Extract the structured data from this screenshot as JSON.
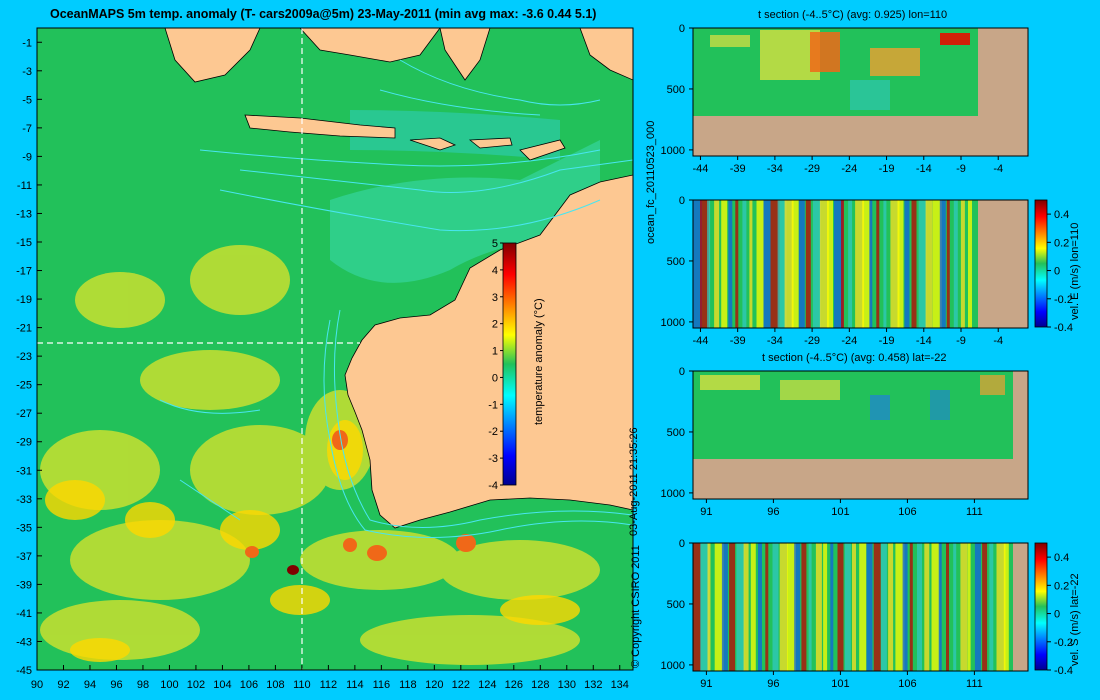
{
  "map": {
    "title": "OceanMAPS 5m temp. anomaly  (T- cars2009a@5m) 23-May-2011  (min avg max: -3.6 0.44 5.1)",
    "y_ticks": [
      "-1",
      "-3",
      "-5",
      "-7",
      "-9",
      "-11",
      "-13",
      "-15",
      "-17",
      "-19",
      "-21",
      "-23",
      "-25",
      "-27",
      "-29",
      "-31",
      "-33",
      "-35",
      "-37",
      "-39",
      "-41",
      "-43",
      "-45"
    ],
    "x_ticks": [
      "90",
      "92",
      "94",
      "96",
      "98",
      "100",
      "102",
      "104",
      "106",
      "108",
      "110",
      "112",
      "114",
      "116",
      "118",
      "120",
      "122",
      "124",
      "126",
      "128",
      "130",
      "132",
      "134"
    ],
    "colorbar_ticks": [
      "5",
      "4",
      "3",
      "2",
      "1",
      "0",
      "-1",
      "-2",
      "-3",
      "-4"
    ],
    "colorbar_label": "temperature anomaly (°C)",
    "colors": {
      "land": "#fdc892",
      "ocean": "#22c15a",
      "contour": "#48e6f0",
      "crosshair": "#ffffff"
    }
  },
  "side_labels": {
    "run_id": "ocean_fc_20110523_000",
    "timestamp": "03-Aug-2011 21:35:26",
    "copyright": "© Copyright CSIRO 2011"
  },
  "chart_data": [
    {
      "type": "heatmap",
      "title": "OceanMAPS 5m temp. anomaly  (T- cars2009a@5m) 23-May-2011  (min avg max: -3.6 0.44 5.1)",
      "xlim": [
        90,
        135
      ],
      "ylim": [
        -45,
        0
      ],
      "x_ticks": [
        90,
        92,
        94,
        96,
        98,
        100,
        102,
        104,
        106,
        108,
        110,
        112,
        114,
        116,
        118,
        120,
        122,
        124,
        126,
        128,
        130,
        132,
        134
      ],
      "y_ticks": [
        -1,
        -3,
        -5,
        -7,
        -9,
        -11,
        -13,
        -15,
        -17,
        -19,
        -21,
        -23,
        -25,
        -27,
        -29,
        -31,
        -33,
        -35,
        -37,
        -39,
        -41,
        -43,
        -45
      ],
      "stats": {
        "min": -3.6,
        "avg": 0.44,
        "max": 5.1
      },
      "colorbar": {
        "label": "temperature anomaly (°C)",
        "range": [
          -4,
          5
        ]
      },
      "crosshair": {
        "lon": 110,
        "lat": -22
      }
    },
    {
      "type": "heatmap",
      "title": "t section (-4..5°C) (avg: 0.925) lon=110",
      "x_ticks": [
        -44,
        -39,
        -34,
        -29,
        -24,
        -19,
        -14,
        -9,
        -4
      ],
      "y_ticks": [
        0,
        500,
        1000
      ],
      "xlim": [
        -45,
        0
      ],
      "ylim": [
        1050,
        0
      ]
    },
    {
      "type": "heatmap",
      "x_ticks": [
        -44,
        -39,
        -34,
        -29,
        -24,
        -19,
        -14,
        -9,
        -4
      ],
      "y_ticks": [
        0,
        500,
        1000
      ],
      "xlim": [
        -45,
        0
      ],
      "ylim": [
        1050,
        0
      ],
      "colorbar": {
        "label": "vel. E (m/s) lon=110",
        "range": [
          -0.4,
          0.5
        ],
        "ticks": [
          "0.4",
          "0.2",
          "0",
          "-0.2",
          "-0.4"
        ]
      }
    },
    {
      "type": "heatmap",
      "title": "t section (-4..5°C) (avg: 0.458) lat=-22",
      "x_ticks": [
        91,
        96,
        101,
        106,
        111
      ],
      "y_ticks": [
        0,
        500,
        1000
      ],
      "xlim": [
        90,
        115
      ],
      "ylim": [
        1050,
        0
      ]
    },
    {
      "type": "heatmap",
      "x_ticks": [
        91,
        96,
        101,
        106,
        111
      ],
      "y_ticks": [
        0,
        500,
        1000
      ],
      "xlim": [
        90,
        115
      ],
      "ylim": [
        1050,
        0
      ],
      "colorbar": {
        "label": "vel. S (m/s) lat=-22",
        "range": [
          -0.4,
          0.5
        ],
        "ticks": [
          "0.4",
          "0.2",
          "0",
          "-0.2",
          "-0.4"
        ]
      }
    }
  ]
}
